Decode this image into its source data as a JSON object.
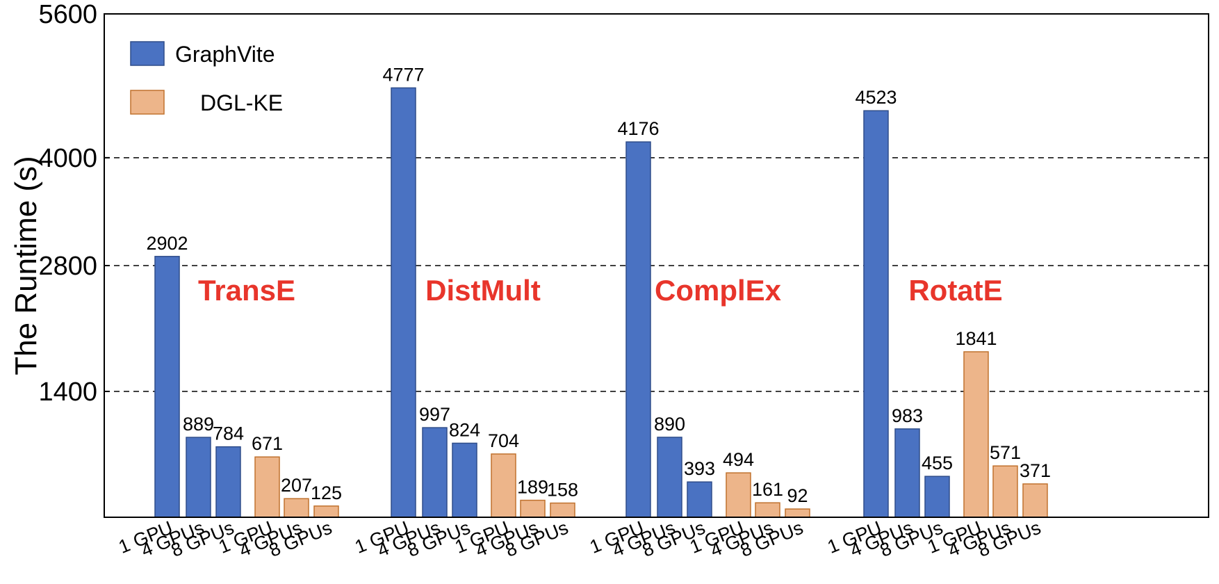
{
  "chart_data": {
    "type": "bar",
    "ylabel": "The Runtime (s)",
    "xlabel": "",
    "ylim": [
      0,
      5600
    ],
    "yticks": [
      1400,
      2800,
      4000,
      5600
    ],
    "grid": "dashed horizontal lines at 1400, 2800, 4000",
    "legend_position": "top-left",
    "series": [
      {
        "name": "GraphVite",
        "color": "#4a72c2"
      },
      {
        "name": "DGL-KE",
        "color": "#edb58a"
      }
    ],
    "groups": [
      {
        "name": "TransE",
        "bars": [
          {
            "series": "GraphVite",
            "label": "1 GPU",
            "value": 2902
          },
          {
            "series": "GraphVite",
            "label": "4 GPUs",
            "value": 889
          },
          {
            "series": "GraphVite",
            "label": "8 GPUs",
            "value": 784
          },
          {
            "series": "DGL-KE",
            "label": "1 GPU",
            "value": 671
          },
          {
            "series": "DGL-KE",
            "label": "4 GPUs",
            "value": 207
          },
          {
            "series": "DGL-KE",
            "label": "8 GPUs",
            "value": 125
          }
        ]
      },
      {
        "name": "DistMult",
        "bars": [
          {
            "series": "GraphVite",
            "label": "1 GPU",
            "value": 4777
          },
          {
            "series": "GraphVite",
            "label": "4 GPUs",
            "value": 997
          },
          {
            "series": "GraphVite",
            "label": "8 GPUs",
            "value": 824
          },
          {
            "series": "DGL-KE",
            "label": "1 GPU",
            "value": 704
          },
          {
            "series": "DGL-KE",
            "label": "4 GPUs",
            "value": 189
          },
          {
            "series": "DGL-KE",
            "label": "8 GPUs",
            "value": 158
          }
        ]
      },
      {
        "name": "ComplEx",
        "bars": [
          {
            "series": "GraphVite",
            "label": "1 GPU",
            "value": 4176
          },
          {
            "series": "GraphVite",
            "label": "4 GPUs",
            "value": 890
          },
          {
            "series": "GraphVite",
            "label": "8 GPUs",
            "value": 393
          },
          {
            "series": "DGL-KE",
            "label": "1 GPU",
            "value": 494
          },
          {
            "series": "DGL-KE",
            "label": "4 GPUs",
            "value": 161
          },
          {
            "series": "DGL-KE",
            "label": "8 GPUs",
            "value": 92
          }
        ]
      },
      {
        "name": "RotatE",
        "bars": [
          {
            "series": "GraphVite",
            "label": "1 GPU",
            "value": 4523
          },
          {
            "series": "GraphVite",
            "label": "4 GPUs",
            "value": 983
          },
          {
            "series": "GraphVite",
            "label": "8 GPUs",
            "value": 455
          },
          {
            "series": "DGL-KE",
            "label": "1 GPU",
            "value": 1841
          },
          {
            "series": "DGL-KE",
            "label": "4 GPUs",
            "value": 571
          },
          {
            "series": "DGL-KE",
            "label": "8 GPUs",
            "value": 371
          }
        ]
      }
    ],
    "group_label_color": "#e8352b"
  }
}
